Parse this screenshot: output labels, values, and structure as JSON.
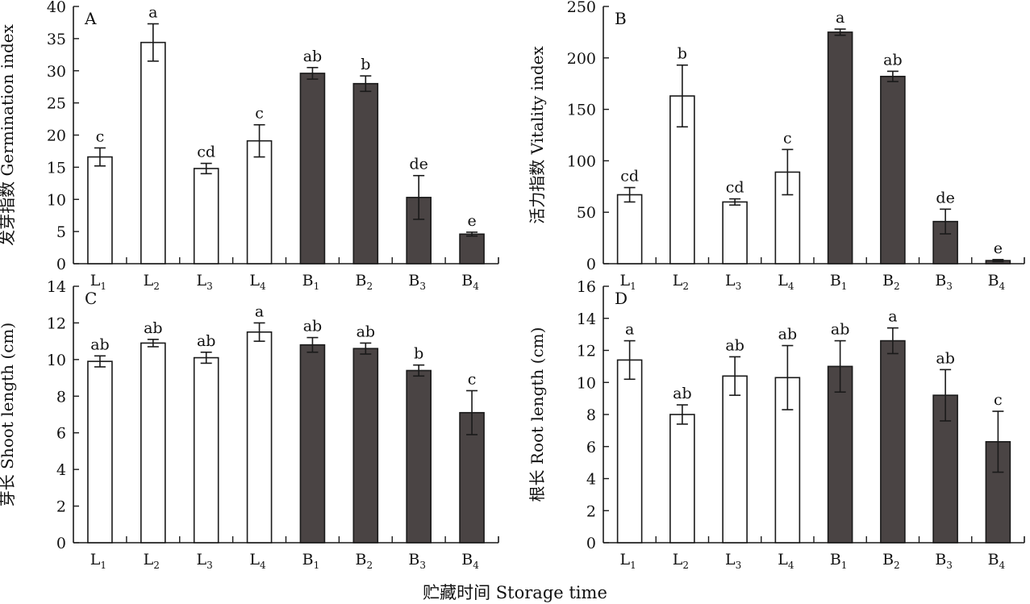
{
  "x_axis_title": "贮藏时间 Storage time",
  "colors": {
    "light_fill": "#ffffff",
    "dark_fill": "#4a4444",
    "stroke": "#1a1a1a"
  },
  "chart_data": [
    {
      "type": "bar",
      "panel": "A",
      "ylabel": "发芽指数 Germination index",
      "ylim": [
        0,
        40
      ],
      "yticks": [
        0,
        5,
        10,
        15,
        20,
        25,
        30,
        35,
        40
      ],
      "categories": [
        {
          "base": "L",
          "sub": "1"
        },
        {
          "base": "L",
          "sub": "2"
        },
        {
          "base": "L",
          "sub": "3"
        },
        {
          "base": "L",
          "sub": "4"
        },
        {
          "base": "B",
          "sub": "1"
        },
        {
          "base": "B",
          "sub": "2"
        },
        {
          "base": "B",
          "sub": "3"
        },
        {
          "base": "B",
          "sub": "4"
        }
      ],
      "values": [
        16.6,
        34.4,
        14.8,
        19.1,
        29.6,
        28.0,
        10.3,
        4.6
      ],
      "errors": [
        1.4,
        2.9,
        0.8,
        2.5,
        0.9,
        1.2,
        3.4,
        0.3
      ],
      "significance": [
        "c",
        "a",
        "cd",
        "c",
        "ab",
        "b",
        "de",
        "e"
      ],
      "fill_groups": [
        "light",
        "light",
        "light",
        "light",
        "dark",
        "dark",
        "dark",
        "dark"
      ]
    },
    {
      "type": "bar",
      "panel": "B",
      "ylabel": "活力指数 Vitality index",
      "ylim": [
        0,
        250
      ],
      "yticks": [
        0,
        50,
        100,
        150,
        200,
        250
      ],
      "categories": [
        {
          "base": "L",
          "sub": "1"
        },
        {
          "base": "L",
          "sub": "2"
        },
        {
          "base": "L",
          "sub": "3"
        },
        {
          "base": "L",
          "sub": "4"
        },
        {
          "base": "B",
          "sub": "1"
        },
        {
          "base": "B",
          "sub": "2"
        },
        {
          "base": "B",
          "sub": "3"
        },
        {
          "base": "B",
          "sub": "4"
        }
      ],
      "values": [
        67,
        163,
        60,
        89,
        225,
        182,
        41,
        3
      ],
      "errors": [
        7,
        30,
        3,
        22,
        3,
        5,
        12,
        1
      ],
      "significance": [
        "cd",
        "b",
        "cd",
        "c",
        "a",
        "ab",
        "de",
        "e"
      ],
      "fill_groups": [
        "light",
        "light",
        "light",
        "light",
        "dark",
        "dark",
        "dark",
        "dark"
      ]
    },
    {
      "type": "bar",
      "panel": "C",
      "ylabel": "芽长 Shoot length (cm)",
      "ylim": [
        0,
        14
      ],
      "yticks": [
        0,
        2,
        4,
        6,
        8,
        10,
        12,
        14
      ],
      "categories": [
        {
          "base": "L",
          "sub": "1"
        },
        {
          "base": "L",
          "sub": "2"
        },
        {
          "base": "L",
          "sub": "3"
        },
        {
          "base": "L",
          "sub": "4"
        },
        {
          "base": "B",
          "sub": "1"
        },
        {
          "base": "B",
          "sub": "2"
        },
        {
          "base": "B",
          "sub": "3"
        },
        {
          "base": "B",
          "sub": "4"
        }
      ],
      "values": [
        9.9,
        10.9,
        10.1,
        11.5,
        10.8,
        10.6,
        9.4,
        7.1
      ],
      "errors": [
        0.3,
        0.2,
        0.3,
        0.5,
        0.4,
        0.3,
        0.3,
        1.2
      ],
      "significance": [
        "ab",
        "ab",
        "ab",
        "a",
        "ab",
        "ab",
        "b",
        "c"
      ],
      "fill_groups": [
        "light",
        "light",
        "light",
        "light",
        "dark",
        "dark",
        "dark",
        "dark"
      ]
    },
    {
      "type": "bar",
      "panel": "D",
      "ylabel": "根长 Root length (cm)",
      "ylim": [
        0,
        16
      ],
      "yticks": [
        0,
        2,
        4,
        6,
        8,
        10,
        12,
        14,
        16
      ],
      "categories": [
        {
          "base": "L",
          "sub": "1"
        },
        {
          "base": "L",
          "sub": "2"
        },
        {
          "base": "L",
          "sub": "3"
        },
        {
          "base": "L",
          "sub": "4"
        },
        {
          "base": "B",
          "sub": "1"
        },
        {
          "base": "B",
          "sub": "2"
        },
        {
          "base": "B",
          "sub": "3"
        },
        {
          "base": "B",
          "sub": "4"
        }
      ],
      "values": [
        11.4,
        8.0,
        10.4,
        10.3,
        11.0,
        12.6,
        9.2,
        6.3
      ],
      "errors": [
        1.2,
        0.6,
        1.2,
        2.0,
        1.6,
        0.8,
        1.6,
        1.9
      ],
      "significance": [
        "a",
        "ab",
        "ab",
        "ab",
        "ab",
        "a",
        "ab",
        "c"
      ],
      "fill_groups": [
        "light",
        "light",
        "light",
        "light",
        "dark",
        "dark",
        "dark",
        "dark"
      ]
    }
  ]
}
